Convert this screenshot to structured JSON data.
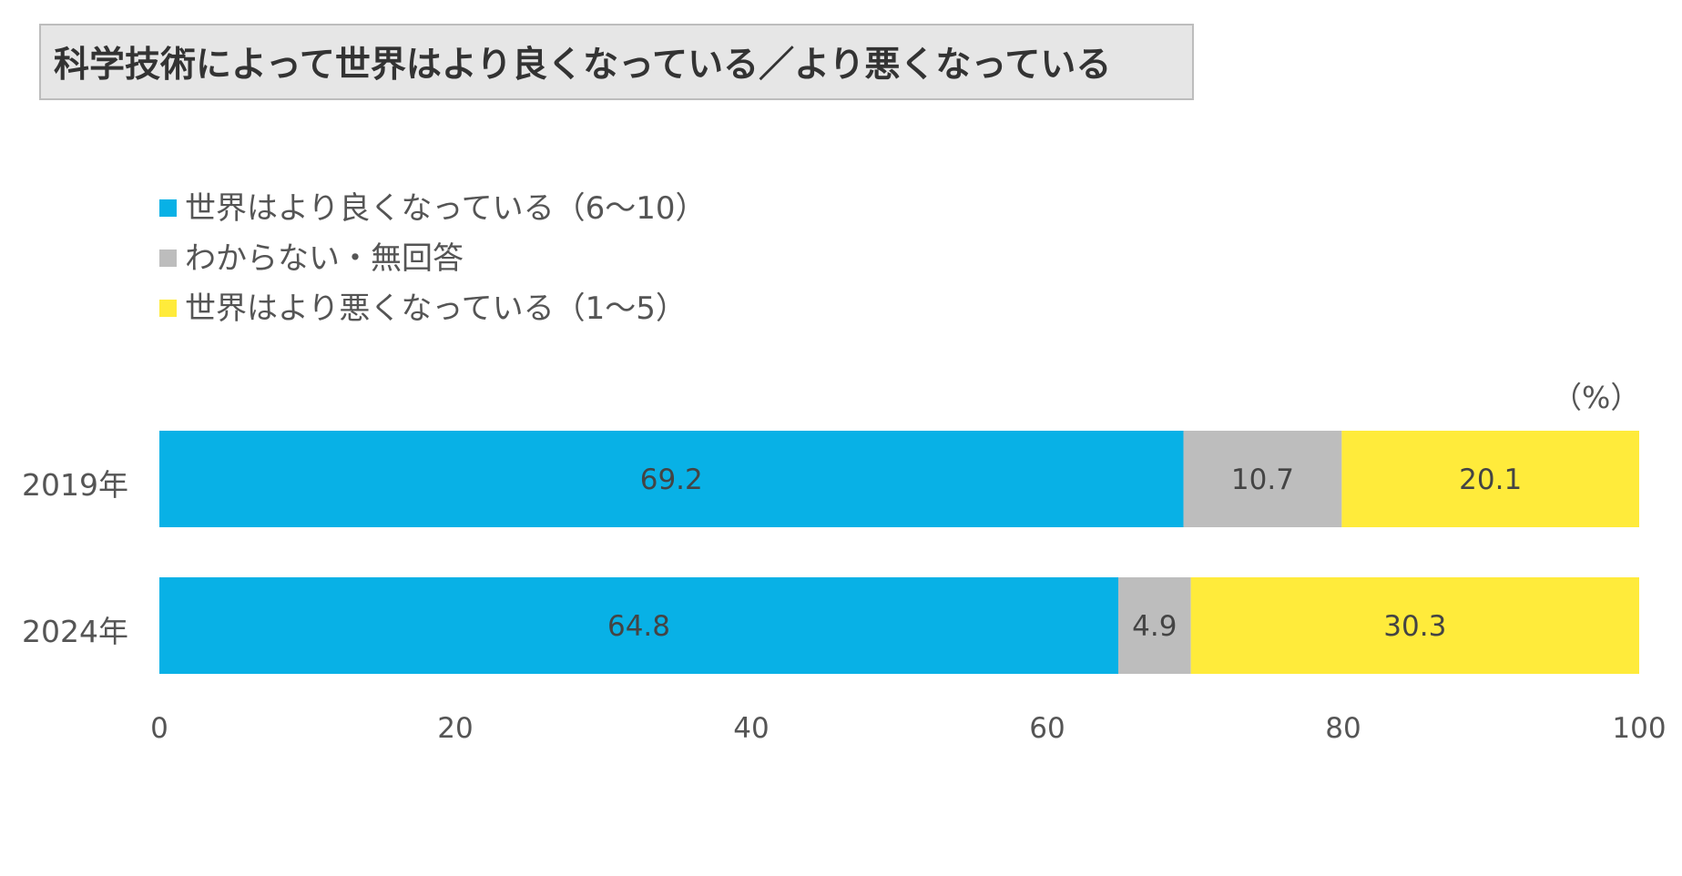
{
  "title": "科学技術によって世界はより良くなっている／より悪くなっている",
  "legend": [
    {
      "label": "世界はより良くなっている（6〜10）",
      "color": "#08b1e6"
    },
    {
      "label": "わからない・無回答",
      "color": "#bdbdbd"
    },
    {
      "label": "世界はより悪くなっている（1〜5）",
      "color": "#ffeb3b"
    }
  ],
  "unit_label": "（%）",
  "chart_data": {
    "type": "bar",
    "orientation": "horizontal",
    "stacked": true,
    "title": "科学技術によって世界はより良くなっている／より悪くなっている",
    "categories": [
      "2019年",
      "2024年"
    ],
    "series": [
      {
        "name": "世界はより良くなっている（6〜10）",
        "color": "#08b1e6",
        "values": [
          69.2,
          64.8
        ]
      },
      {
        "name": "わからない・無回答",
        "color": "#bdbdbd",
        "values": [
          10.7,
          4.9
        ]
      },
      {
        "name": "世界はより悪くなっている（1〜5）",
        "color": "#ffeb3b",
        "values": [
          20.1,
          30.3
        ]
      }
    ],
    "data_labels": [
      [
        "69.2",
        "10.7",
        "20.1"
      ],
      [
        "64.8",
        "4.9",
        "30.3"
      ]
    ],
    "xlim": [
      0,
      100
    ],
    "xticks": [
      "0",
      "20",
      "40",
      "60",
      "80",
      "100"
    ],
    "xlabel": "",
    "ylabel": "",
    "grid": false,
    "legend_position": "top-left"
  }
}
